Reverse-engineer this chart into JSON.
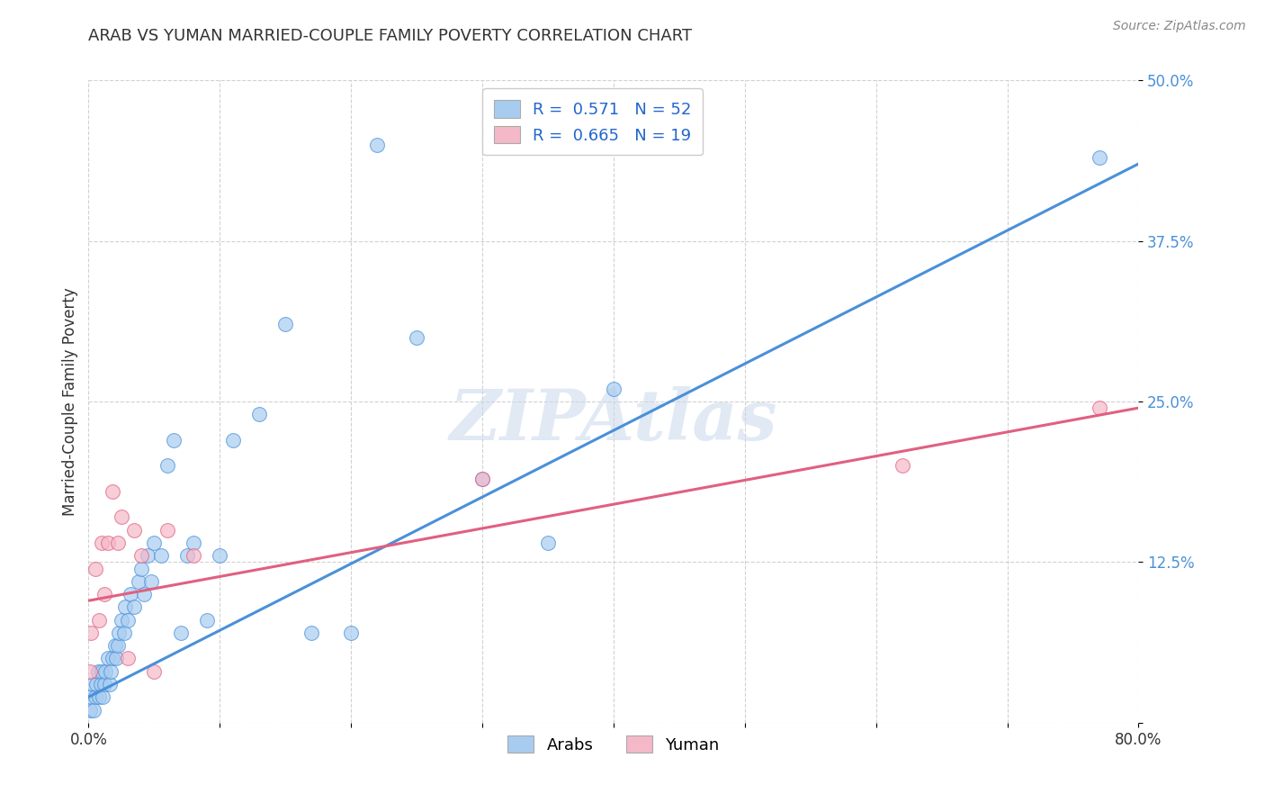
{
  "title": "ARAB VS YUMAN MARRIED-COUPLE FAMILY POVERTY CORRELATION CHART",
  "source": "Source: ZipAtlas.com",
  "ylabel": "Married-Couple Family Poverty",
  "xlim": [
    0.0,
    0.8
  ],
  "ylim": [
    0.0,
    0.5
  ],
  "xticks": [
    0.0,
    0.1,
    0.2,
    0.3,
    0.4,
    0.5,
    0.6,
    0.7,
    0.8
  ],
  "xticklabels": [
    "0.0%",
    "",
    "",
    "",
    "",
    "",
    "",
    "",
    "80.0%"
  ],
  "yticks": [
    0.0,
    0.125,
    0.25,
    0.375,
    0.5
  ],
  "yticklabels": [
    "",
    "12.5%",
    "25.0%",
    "37.5%",
    "50.0%"
  ],
  "arab_R": 0.571,
  "arab_N": 52,
  "yuman_R": 0.665,
  "yuman_N": 19,
  "arab_color": "#a8ccf0",
  "yuman_color": "#f5b8c8",
  "arab_line_color": "#4a90d9",
  "yuman_line_color": "#e06080",
  "background_color": "#ffffff",
  "watermark": "ZIPAtlas",
  "arab_x": [
    0.001,
    0.002,
    0.003,
    0.004,
    0.005,
    0.006,
    0.007,
    0.008,
    0.009,
    0.01,
    0.011,
    0.012,
    0.013,
    0.015,
    0.016,
    0.017,
    0.018,
    0.02,
    0.021,
    0.022,
    0.023,
    0.025,
    0.027,
    0.028,
    0.03,
    0.032,
    0.035,
    0.038,
    0.04,
    0.042,
    0.045,
    0.048,
    0.05,
    0.055,
    0.06,
    0.065,
    0.07,
    0.075,
    0.08,
    0.09,
    0.1,
    0.11,
    0.13,
    0.15,
    0.17,
    0.2,
    0.22,
    0.25,
    0.3,
    0.35,
    0.4,
    0.77
  ],
  "arab_y": [
    0.01,
    0.02,
    0.03,
    0.01,
    0.02,
    0.03,
    0.04,
    0.02,
    0.03,
    0.04,
    0.02,
    0.03,
    0.04,
    0.05,
    0.03,
    0.04,
    0.05,
    0.06,
    0.05,
    0.06,
    0.07,
    0.08,
    0.07,
    0.09,
    0.08,
    0.1,
    0.09,
    0.11,
    0.12,
    0.1,
    0.13,
    0.11,
    0.14,
    0.13,
    0.2,
    0.22,
    0.07,
    0.13,
    0.14,
    0.08,
    0.13,
    0.22,
    0.24,
    0.31,
    0.07,
    0.07,
    0.45,
    0.3,
    0.19,
    0.14,
    0.26,
    0.44
  ],
  "yuman_x": [
    0.001,
    0.002,
    0.005,
    0.008,
    0.01,
    0.012,
    0.015,
    0.018,
    0.022,
    0.025,
    0.03,
    0.035,
    0.04,
    0.05,
    0.06,
    0.08,
    0.3,
    0.62,
    0.77
  ],
  "yuman_y": [
    0.04,
    0.07,
    0.12,
    0.08,
    0.14,
    0.1,
    0.14,
    0.18,
    0.14,
    0.16,
    0.05,
    0.15,
    0.13,
    0.04,
    0.15,
    0.13,
    0.19,
    0.2,
    0.245
  ],
  "arab_trend_x": [
    0.0,
    0.8
  ],
  "arab_trend_y": [
    0.02,
    0.435
  ],
  "yuman_trend_x": [
    0.0,
    0.8
  ],
  "yuman_trend_y": [
    0.095,
    0.245
  ]
}
